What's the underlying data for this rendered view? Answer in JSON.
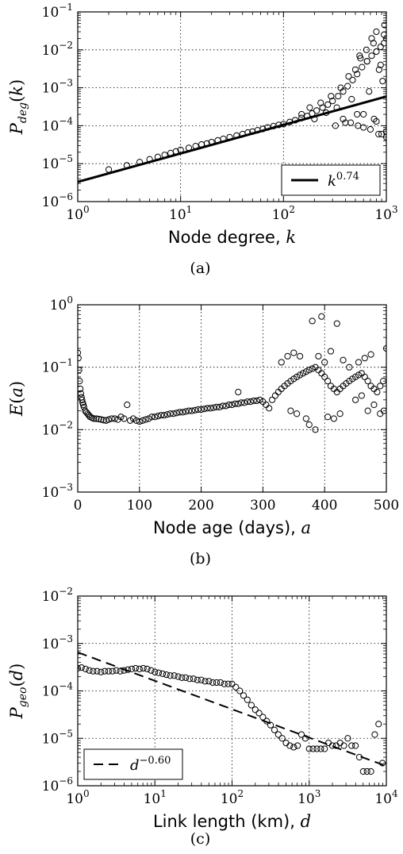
{
  "chart_data": [
    {
      "panel_label": "(a)",
      "type": "scatter",
      "x_scale": "log",
      "y_scale": "log",
      "xlim": [
        1,
        1000
      ],
      "ylim": [
        1e-06,
        0.1
      ],
      "x_ticks": [
        1,
        10,
        100,
        1000
      ],
      "x_tick_labels": [
        "10^0",
        "10^1",
        "10^2",
        "10^3"
      ],
      "y_ticks": [
        1e-06,
        1e-05,
        0.0001,
        0.001,
        0.01,
        0.1
      ],
      "y_tick_labels": [
        "10^-6",
        "10^-5",
        "10^-4",
        "10^-3",
        "10^-2",
        "10^-1"
      ],
      "xlabel": "Node degree,",
      "xlabel_symbol": "k",
      "ylabel": "P_deg(k)",
      "grid": true,
      "legend_position": "lower-right",
      "series": [
        {
          "name": "data",
          "marker": "open-circle",
          "x": [
            2,
            3,
            4,
            5,
            6,
            7,
            8,
            9,
            10,
            12,
            14,
            16,
            18,
            20,
            23,
            26,
            30,
            35,
            40,
            45,
            50,
            56,
            63,
            70,
            80,
            90,
            100,
            115,
            130,
            150,
            170,
            190,
            210,
            240,
            270,
            300,
            340,
            380,
            420,
            470,
            520,
            580,
            650,
            720,
            800,
            880,
            950,
            1000,
            150,
            180,
            200,
            230,
            260,
            290,
            330,
            360,
            400,
            430,
            460,
            500,
            530,
            560,
            600,
            640,
            680,
            720,
            760,
            800,
            840,
            880,
            920,
            960,
            1000,
            320,
            380,
            450,
            520,
            600,
            700,
            800,
            900,
            1000,
            550,
            650,
            750,
            850,
            950
          ],
          "y": [
            7e-06,
            9e-06,
            1.1e-05,
            1.3e-05,
            1.5e-05,
            1.7e-05,
            1.9e-05,
            2.1e-05,
            2.3e-05,
            2.6e-05,
            2.9e-05,
            3.2e-05,
            3.4e-05,
            3.7e-05,
            4.1e-05,
            4.5e-05,
            5e-05,
            5.5e-05,
            6e-05,
            6.6e-05,
            7e-05,
            7.6e-05,
            8.2e-05,
            9e-05,
            9.8e-05,
            0.000105,
            0.00011,
            0.000125,
            0.00014,
            0.00016,
            0.00018,
            0.00021,
            0.00025,
            0.0003,
            0.00036,
            0.00045,
            0.0006,
            0.0008,
            0.0011,
            0.0016,
            0.0023,
            0.0035,
            0.005,
            0.007,
            0.009,
            0.012,
            0.015,
            0.02,
            0.0002,
            0.0003,
            0.00015,
            0.0004,
            0.00022,
            0.0006,
            0.0003,
            0.001,
            0.00012,
            0.002,
            0.0005,
            0.003,
            0.0001,
            0.006,
            0.0002,
            0.01,
            0.0008,
            0.02,
            0.00015,
            0.03,
            6e-05,
            0.004,
            0.0015,
            0.045,
            7e-05,
            0.0001,
            0.00015,
            0.00012,
            0.0002,
            9e-05,
            8e-05,
            0.00013,
            6e-05,
            5e-05,
            0.007,
            0.005,
            0.015,
            0.003,
            0.025
          ]
        },
        {
          "name": "k^0.74",
          "type": "line",
          "x": [
            1,
            1000
          ],
          "y": [
            3.3e-06,
            0.00059
          ]
        }
      ],
      "legend": [
        "k^0.74"
      ]
    },
    {
      "panel_label": "(b)",
      "type": "scatter",
      "x_scale": "linear",
      "y_scale": "log",
      "xlim": [
        0,
        500
      ],
      "ylim": [
        0.001,
        1
      ],
      "x_ticks": [
        0,
        100,
        200,
        300,
        400,
        500
      ],
      "x_tick_labels": [
        "0",
        "100",
        "200",
        "300",
        "400",
        "500"
      ],
      "y_ticks": [
        0.001,
        0.01,
        0.1,
        1
      ],
      "y_tick_labels": [
        "10^-3",
        "10^-2",
        "10^-1",
        "10^0"
      ],
      "xlabel": "Node age (days),",
      "xlabel_symbol": "a",
      "ylabel": "E(a)",
      "grid": true,
      "series": [
        {
          "name": "data",
          "marker": "open-circle",
          "x": [
            0,
            1,
            2,
            3,
            4,
            5,
            6,
            7,
            8,
            9,
            10,
            12,
            14,
            16,
            18,
            20,
            23,
            26,
            30,
            34,
            38,
            42,
            46,
            50,
            55,
            60,
            65,
            70,
            75,
            80,
            85,
            90,
            95,
            100,
            105,
            110,
            115,
            120,
            125,
            130,
            135,
            140,
            145,
            150,
            155,
            160,
            165,
            170,
            175,
            180,
            185,
            190,
            195,
            200,
            205,
            210,
            215,
            220,
            225,
            230,
            235,
            240,
            245,
            250,
            255,
            260,
            265,
            270,
            275,
            280,
            285,
            290,
            295,
            300,
            305,
            310,
            315,
            320,
            325,
            330,
            335,
            340,
            345,
            350,
            355,
            360,
            365,
            370,
            375,
            380,
            385,
            390,
            395,
            400,
            405,
            410,
            415,
            420,
            425,
            430,
            435,
            440,
            445,
            450,
            455,
            460,
            465,
            470,
            475,
            480,
            485,
            490,
            495,
            500,
            260,
            330,
            340,
            350,
            360,
            380,
            390,
            395,
            400,
            410,
            420,
            430,
            440,
            450,
            460,
            470,
            480,
            490,
            496,
            370,
            385,
            345,
            355,
            375,
            405,
            415,
            425,
            455,
            465,
            475
          ],
          "y": [
            0.17,
            0.14,
            0.09,
            0.06,
            0.045,
            0.038,
            0.033,
            0.03,
            0.027,
            0.025,
            0.023,
            0.02,
            0.019,
            0.018,
            0.017,
            0.016,
            0.0155,
            0.015,
            0.015,
            0.0148,
            0.0145,
            0.0142,
            0.014,
            0.0145,
            0.015,
            0.015,
            0.0145,
            0.016,
            0.015,
            0.025,
            0.014,
            0.015,
            0.014,
            0.0135,
            0.014,
            0.0145,
            0.015,
            0.016,
            0.016,
            0.0165,
            0.017,
            0.017,
            0.0175,
            0.018,
            0.018,
            0.0185,
            0.019,
            0.019,
            0.0195,
            0.02,
            0.02,
            0.0205,
            0.021,
            0.021,
            0.0215,
            0.022,
            0.022,
            0.0225,
            0.023,
            0.023,
            0.024,
            0.024,
            0.025,
            0.025,
            0.026,
            0.026,
            0.027,
            0.027,
            0.028,
            0.028,
            0.029,
            0.029,
            0.03,
            0.028,
            0.025,
            0.022,
            0.03,
            0.035,
            0.04,
            0.045,
            0.05,
            0.055,
            0.06,
            0.065,
            0.07,
            0.075,
            0.08,
            0.085,
            0.09,
            0.095,
            0.1,
            0.09,
            0.08,
            0.07,
            0.06,
            0.05,
            0.045,
            0.04,
            0.045,
            0.05,
            0.055,
            0.06,
            0.065,
            0.07,
            0.075,
            0.08,
            0.07,
            0.06,
            0.05,
            0.045,
            0.04,
            0.05,
            0.06,
            0.2,
            0.04,
            0.12,
            0.15,
            0.17,
            0.15,
            0.55,
            0.15,
            0.65,
            0.12,
            0.18,
            0.5,
            0.13,
            0.1,
            0.03,
            0.035,
            0.02,
            0.025,
            0.018,
            0.02,
            0.015,
            0.01,
            0.02,
            0.018,
            0.012,
            0.016,
            0.015,
            0.018,
            0.12,
            0.14,
            0.16
          ]
        }
      ]
    },
    {
      "panel_label": "(c)",
      "type": "scatter",
      "x_scale": "log",
      "y_scale": "log",
      "xlim": [
        1,
        10000
      ],
      "ylim": [
        1e-06,
        0.01
      ],
      "x_ticks": [
        1,
        10,
        100,
        1000,
        10000
      ],
      "x_tick_labels": [
        "10^0",
        "10^1",
        "10^2",
        "10^3",
        "10^4"
      ],
      "y_ticks": [
        1e-06,
        1e-05,
        0.0001,
        0.001,
        0.01
      ],
      "y_tick_labels": [
        "10^-6",
        "10^-5",
        "10^-4",
        "10^-3",
        "10^-2"
      ],
      "xlabel": "Link length (km),",
      "xlabel_symbol": "d",
      "ylabel": "P_geo(d)",
      "grid": true,
      "legend_position": "lower-left",
      "series": [
        {
          "name": "data",
          "marker": "open-circle",
          "x": [
            1,
            1.12,
            1.26,
            1.41,
            1.58,
            1.78,
            2,
            2.24,
            2.51,
            2.82,
            3.16,
            3.55,
            3.98,
            4.47,
            5.01,
            5.62,
            6.31,
            7.08,
            7.94,
            8.91,
            10,
            11.2,
            12.6,
            14.1,
            15.8,
            17.8,
            20,
            22.4,
            25.1,
            28.2,
            31.6,
            35.5,
            39.8,
            44.7,
            50.1,
            56.2,
            63.1,
            70.8,
            79.4,
            89.1,
            100,
            112,
            126,
            141,
            158,
            178,
            200,
            224,
            251,
            282,
            316,
            355,
            398,
            447,
            501,
            562,
            631,
            708,
            794,
            891,
            1000,
            1122,
            1259,
            1413,
            1585,
            1778,
            1995,
            2239,
            2512,
            2818,
            3162,
            3548,
            3981,
            4467,
            5012,
            5623,
            6310,
            7079,
            7943,
            8913
          ],
          "y": [
            0.0003,
            0.00031,
            0.00029,
            0.00027,
            0.00026,
            0.00026,
            0.00025,
            0.00026,
            0.00026,
            0.00026,
            0.00027,
            0.00026,
            0.00027,
            0.00028,
            0.00029,
            0.0003,
            0.00029,
            0.0003,
            0.00029,
            0.00027,
            0.00025,
            0.00024,
            0.00023,
            0.00022,
            0.00021,
            0.00021,
            0.0002,
            0.00019,
            0.00019,
            0.00018,
            0.00018,
            0.00017,
            0.00017,
            0.00016,
            0.00016,
            0.00015,
            0.00015,
            0.00015,
            0.00014,
            0.00014,
            0.00014,
            0.00012,
            0.0001,
            8e-05,
            6.5e-05,
            5e-05,
            4e-05,
            3.4e-05,
            2.8e-05,
            2.3e-05,
            1.9e-05,
            1.5e-05,
            1.2e-05,
            1e-05,
            8e-06,
            7e-06,
            6.5e-06,
            7e-06,
            1.2e-05,
            1e-05,
            6e-06,
            6e-06,
            6e-06,
            6e-06,
            6e-06,
            8e-06,
            7e-06,
            7e-06,
            8e-06,
            7e-06,
            1e-05,
            7e-06,
            7e-06,
            4e-06,
            2e-06,
            2e-06,
            2e-06,
            1.2e-05,
            2e-05,
            3e-06
          ]
        },
        {
          "name": "d^-0.60",
          "type": "line",
          "style": "dashed",
          "x": [
            1,
            10000
          ],
          "y": [
            0.00065,
            2.6e-06
          ]
        }
      ],
      "legend": [
        "d^-0.60"
      ]
    }
  ]
}
